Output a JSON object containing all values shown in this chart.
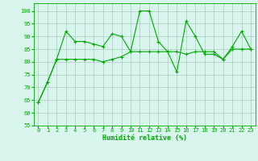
{
  "line1_x": [
    0,
    1,
    2,
    3,
    4,
    5,
    6,
    7,
    8,
    9,
    10,
    11,
    12,
    13,
    14,
    15,
    16,
    17,
    18,
    19,
    20,
    21,
    22,
    23
  ],
  "line1_y": [
    64,
    72,
    81,
    92,
    88,
    88,
    87,
    86,
    91,
    90,
    84,
    100,
    100,
    88,
    84,
    84,
    83,
    84,
    84,
    84,
    81,
    86,
    92,
    85
  ],
  "line2_x": [
    0,
    1,
    2,
    3,
    4,
    5,
    6,
    7,
    8,
    9,
    10,
    11,
    12,
    13,
    14,
    15,
    16,
    17,
    18,
    19,
    20,
    21,
    22,
    23
  ],
  "line2_y": [
    64,
    72,
    81,
    81,
    81,
    81,
    81,
    80,
    81,
    82,
    84,
    84,
    84,
    84,
    84,
    76,
    96,
    90,
    83,
    83,
    81,
    85,
    85,
    85
  ],
  "xlabel": "Humidité relative (%)",
  "ylim": [
    55,
    103
  ],
  "yticks": [
    55,
    60,
    65,
    70,
    75,
    80,
    85,
    90,
    95,
    100
  ],
  "xlim": [
    -0.5,
    23.5
  ],
  "line_color": "#00aa00",
  "bg_color": "#d8f5ee",
  "grid_color": "#aaccbb",
  "xlabel_fontsize": 6.0,
  "tick_fontsize": 5.0
}
